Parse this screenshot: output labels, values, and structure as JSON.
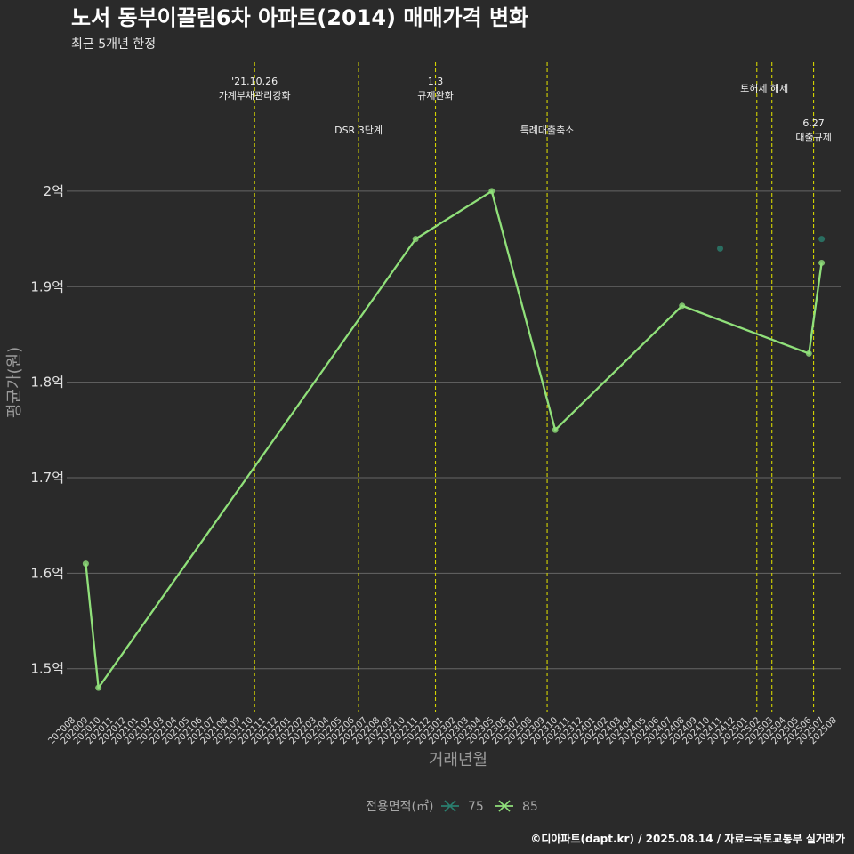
{
  "title": "노서 동부이끌림6차 아파트(2014) 매매가격 변화",
  "subtitle": "최근 5개년 한정",
  "caption": "©디아파트(dapt.kr) / 2025.08.14 / 자료=국토교통부 실거래가",
  "colors": {
    "background": "#2a2a2a",
    "grid": "#666666",
    "event_line": "#d4d400",
    "series_75": "#2a7f6f",
    "series_85": "#90e07a"
  },
  "chart_data": {
    "type": "line",
    "title": "노서 동부이끌림6차 아파트(2014) 매매가격 변화",
    "subtitle": "최근 5개년 한정",
    "xlabel": "거래년월",
    "ylabel": "평균가(원)",
    "ylim": [
      1.455,
      2.135
    ],
    "yticks": [
      1.5,
      1.6,
      1.7,
      1.8,
      1.9,
      2.0
    ],
    "ytick_labels": [
      "1.5억",
      "1.6억",
      "1.7억",
      "1.8억",
      "1.9억",
      "2억"
    ],
    "grid": "horizontal",
    "categories": [
      "202008",
      "202009",
      "202010",
      "202011",
      "202012",
      "202101",
      "202102",
      "202103",
      "202104",
      "202105",
      "202106",
      "202107",
      "202108",
      "202109",
      "202110",
      "202111",
      "202112",
      "202201",
      "202202",
      "202203",
      "202204",
      "202205",
      "202206",
      "202207",
      "202208",
      "202209",
      "202210",
      "202211",
      "202212",
      "202301",
      "202302",
      "202303",
      "202304",
      "202305",
      "202306",
      "202307",
      "202308",
      "202309",
      "202310",
      "202311",
      "202312",
      "202401",
      "202402",
      "202403",
      "202404",
      "202405",
      "202406",
      "202407",
      "202408",
      "202409",
      "202410",
      "202411",
      "202412",
      "202501",
      "202502",
      "202503",
      "202504",
      "202505",
      "202506",
      "202507",
      "202508"
    ],
    "legend": {
      "title": "전용면적(㎡)",
      "position": "bottom",
      "items": [
        "75",
        "85"
      ]
    },
    "series": [
      {
        "name": "75",
        "color": "#2a7f6f",
        "points": [
          {
            "x": "202411",
            "y": 1.94
          },
          {
            "x": "202507",
            "y": 1.95
          }
        ]
      },
      {
        "name": "85",
        "color": "#90e07a",
        "points": [
          {
            "x": "202009",
            "y": 1.61
          },
          {
            "x": "202010",
            "y": 1.48
          },
          {
            "x": "202211",
            "y": 1.95
          },
          {
            "x": "202305",
            "y": 2.0
          },
          {
            "x": "202310",
            "y": 1.75
          },
          {
            "x": "202408",
            "y": 1.88
          },
          {
            "x": "202506",
            "y": 1.83
          },
          {
            "x": "202507",
            "y": 1.925
          }
        ]
      }
    ],
    "events": [
      {
        "date": "2021-10-26",
        "lines": [
          "'21.10.26",
          "가계부채관리강화"
        ],
        "row": "top"
      },
      {
        "date": "2022-07-01",
        "lines": [
          "DSR 3단계"
        ],
        "row": "low"
      },
      {
        "date": "2023-01-03",
        "lines": [
          "1.3",
          "규제완화"
        ],
        "row": "top"
      },
      {
        "date": "2023-09-27",
        "lines": [
          "특례대출축소"
        ],
        "row": "low"
      },
      {
        "date": "2025-02-12",
        "lines": [],
        "row": "top"
      },
      {
        "date": "2025-03-19",
        "lines": [
          "토허제 해제"
        ],
        "row": "mid",
        "between": "2025-02-12"
      },
      {
        "date": "2025-06-27",
        "lines": [
          "6.27",
          "대출규제"
        ],
        "row": "low2"
      }
    ]
  }
}
